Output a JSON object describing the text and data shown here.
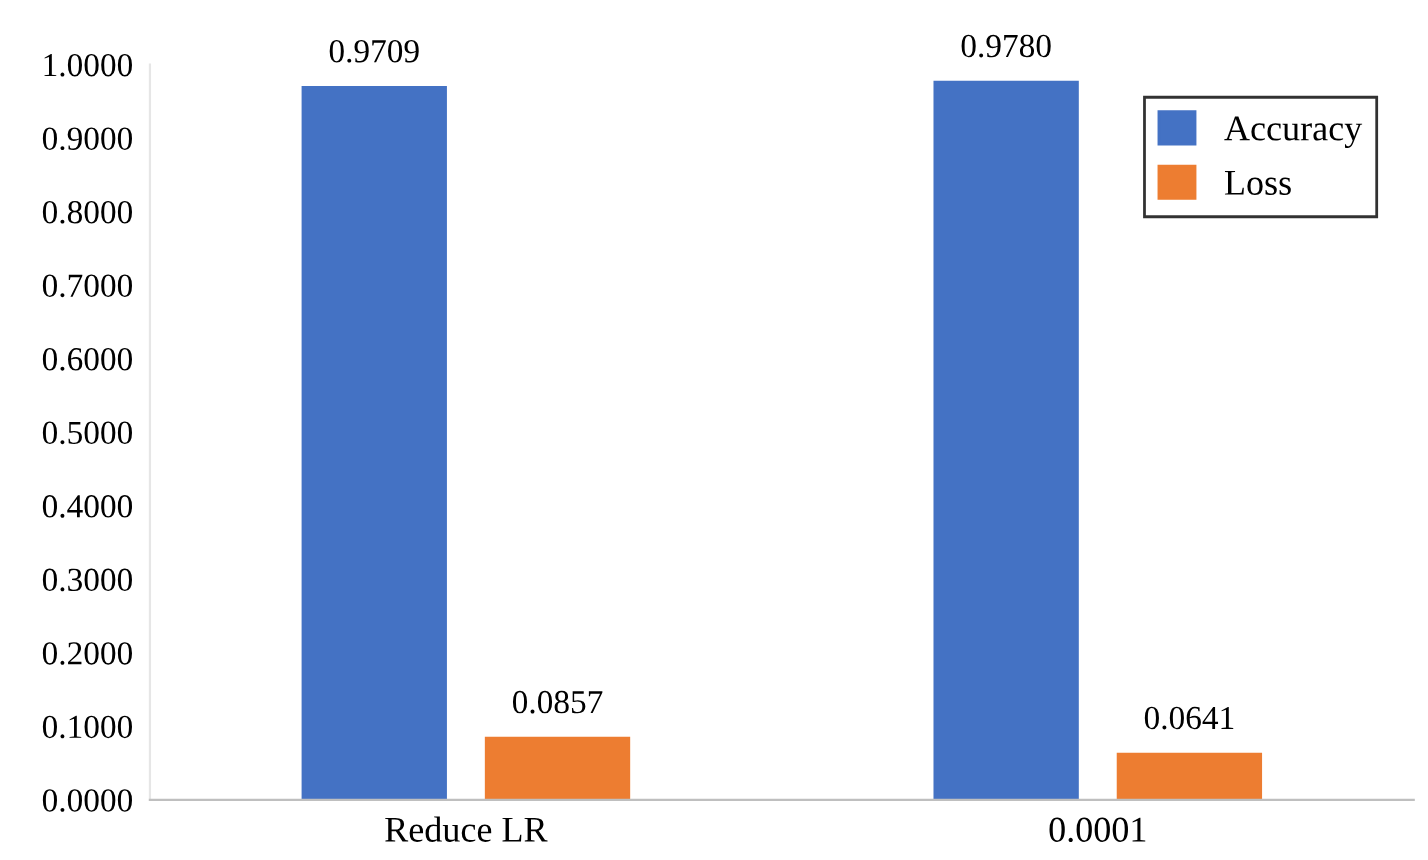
{
  "chart_data": {
    "type": "bar",
    "categories": [
      "Reduce LR",
      "0.0001"
    ],
    "series": [
      {
        "name": "Accuracy",
        "color": "#4472c4",
        "values": [
          0.9709,
          0.978
        ],
        "value_labels": [
          "0.9709",
          "0.9780"
        ]
      },
      {
        "name": "Loss",
        "color": "#ed7d31",
        "values": [
          0.0857,
          0.0641
        ],
        "value_labels": [
          "0.0857",
          "0.0641"
        ]
      }
    ],
    "ylim": [
      0,
      1.0
    ],
    "yticks": [
      {
        "value": 0,
        "label": "0.0000"
      },
      {
        "value": 0.1,
        "label": "0.1000"
      },
      {
        "value": 0.2,
        "label": "0.2000"
      },
      {
        "value": 0.3,
        "label": "0.3000"
      },
      {
        "value": 0.4,
        "label": "0.4000"
      },
      {
        "value": 0.5,
        "label": "0.5000"
      },
      {
        "value": 0.6,
        "label": "0.6000"
      },
      {
        "value": 0.7,
        "label": "0.7000"
      },
      {
        "value": 0.8,
        "label": "0.8000"
      },
      {
        "value": 0.9,
        "label": "0.9000"
      },
      {
        "value": 1.0,
        "label": "1.0000"
      }
    ],
    "grid": false,
    "legend": "top right"
  }
}
